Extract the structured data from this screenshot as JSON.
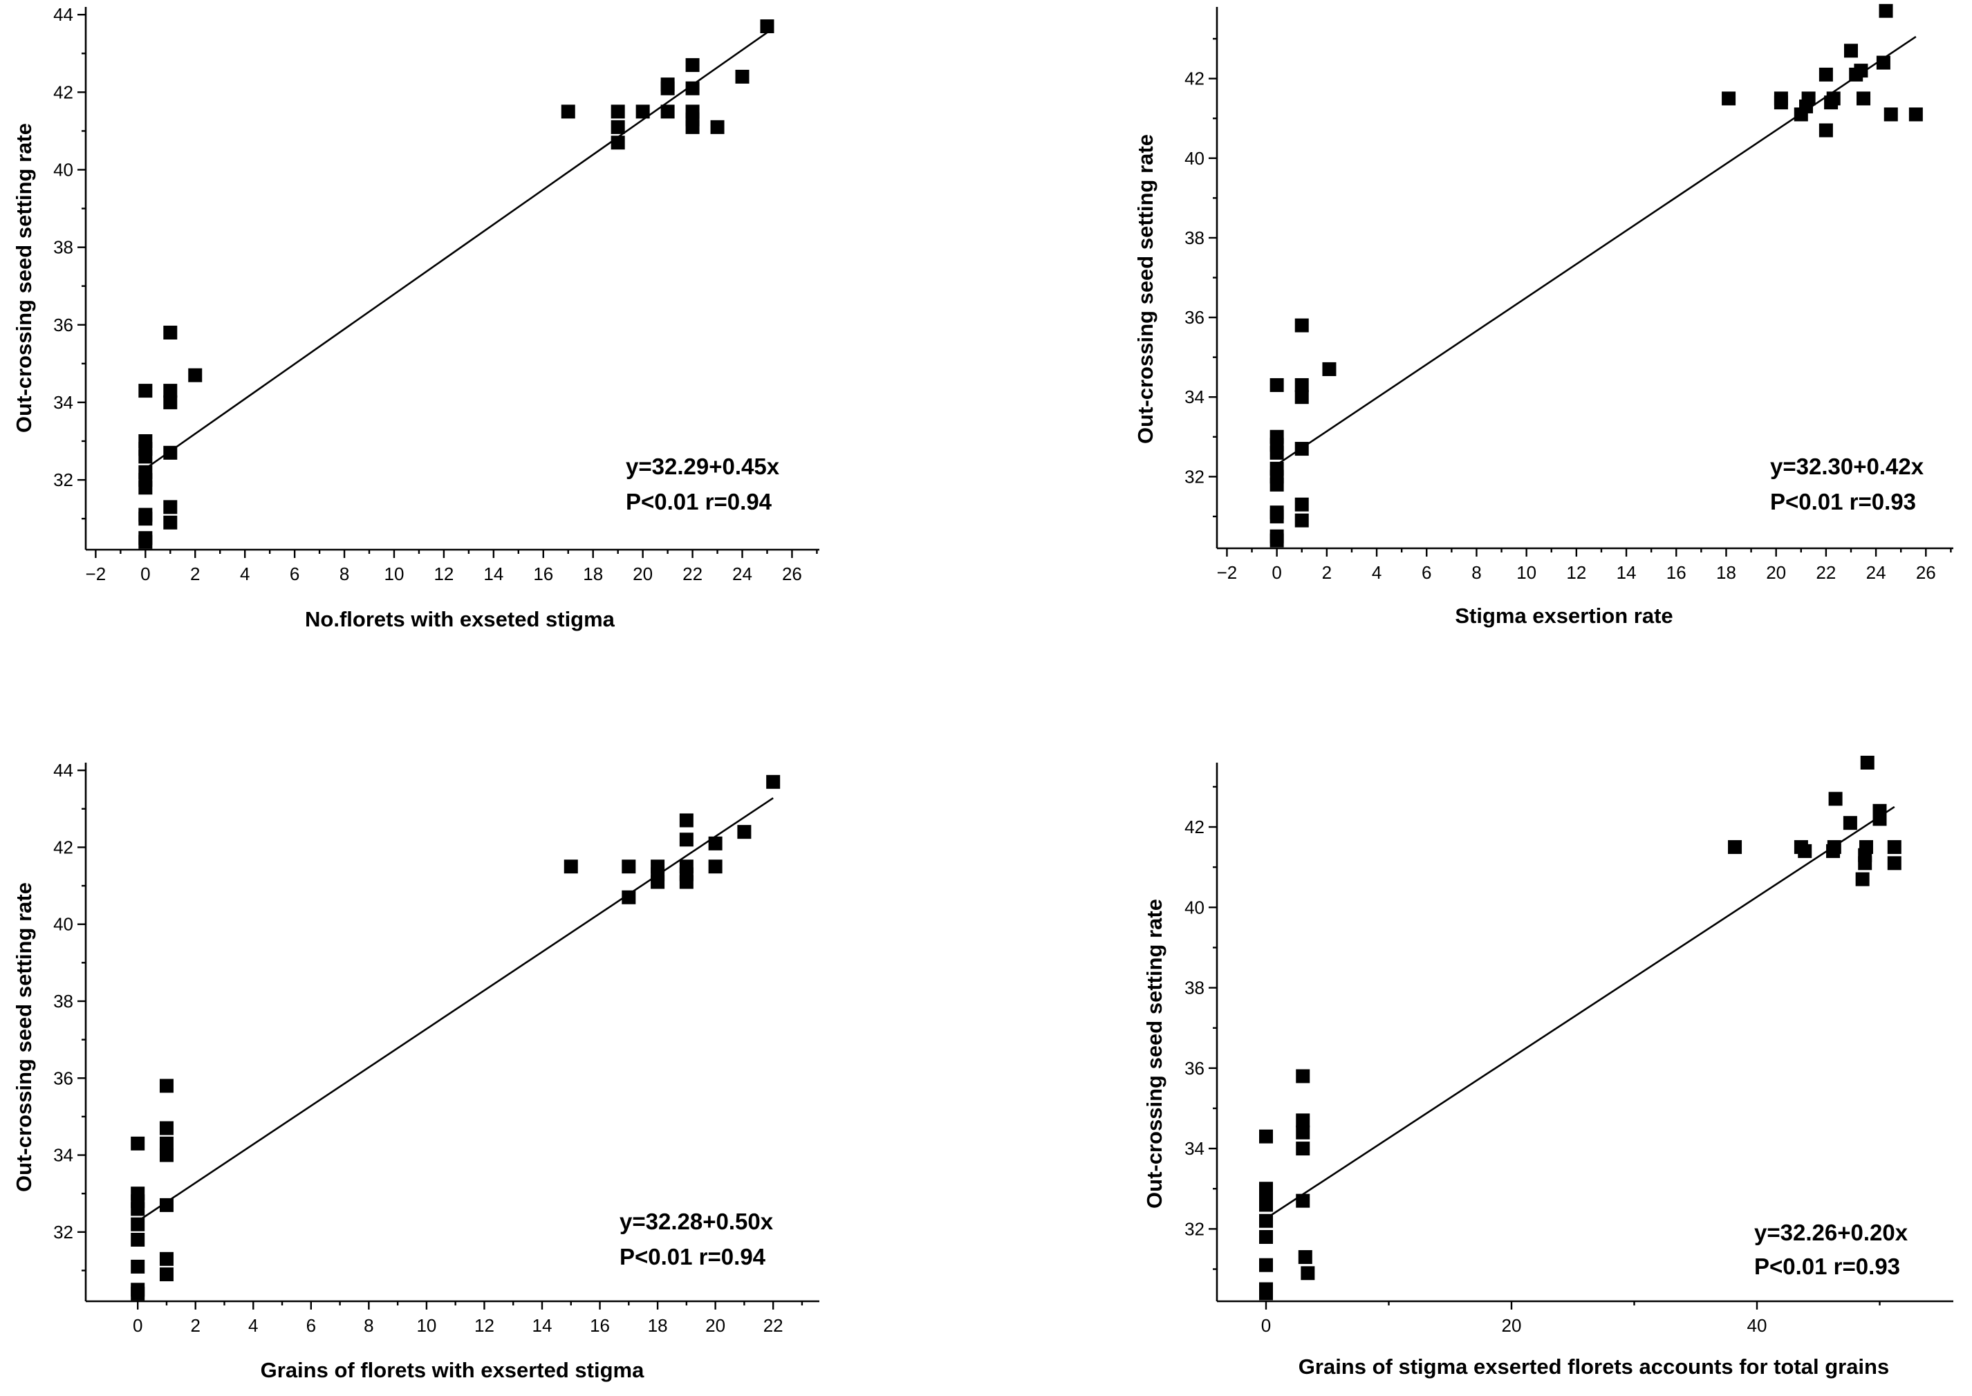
{
  "chart_data": [
    {
      "type": "scatter",
      "xlabel": "No.florets with exseted stigma",
      "ylabel": "Out-crossing seed setting rate",
      "xlim": [
        -2.4,
        27.1
      ],
      "ylim": [
        30.2,
        44.2
      ],
      "xticks": [
        -2,
        0,
        2,
        4,
        6,
        8,
        10,
        12,
        14,
        16,
        18,
        20,
        22,
        24,
        26
      ],
      "yticks": [
        32,
        34,
        36,
        38,
        40,
        42,
        44
      ],
      "points": [
        [
          0,
          30.4
        ],
        [
          0,
          30.5
        ],
        [
          0,
          31.0
        ],
        [
          0,
          31.1
        ],
        [
          0,
          31.8
        ],
        [
          0,
          32.0
        ],
        [
          0,
          32.2
        ],
        [
          0,
          32.6
        ],
        [
          0,
          32.8
        ],
        [
          0,
          33.0
        ],
        [
          0,
          34.3
        ],
        [
          1,
          30.9
        ],
        [
          1,
          31.3
        ],
        [
          1,
          32.7
        ],
        [
          1,
          34.0
        ],
        [
          1,
          34.3
        ],
        [
          1,
          35.8
        ],
        [
          2,
          34.7
        ],
        [
          17,
          41.5
        ],
        [
          19,
          40.7
        ],
        [
          19,
          41.1
        ],
        [
          19,
          41.5
        ],
        [
          20,
          41.5
        ],
        [
          21,
          41.5
        ],
        [
          21,
          42.1
        ],
        [
          21,
          42.2
        ],
        [
          22,
          41.1
        ],
        [
          22,
          41.3
        ],
        [
          22,
          41.5
        ],
        [
          22,
          42.1
        ],
        [
          22,
          42.7
        ],
        [
          23,
          41.1
        ],
        [
          24,
          42.4
        ],
        [
          25,
          43.7
        ]
      ],
      "fit": {
        "intercept": 32.29,
        "slope": 0.45
      },
      "annotations": [
        "y=32.29+0.45x",
        "P<0.01 r=0.94"
      ]
    },
    {
      "type": "scatter",
      "xlabel": "Stigma exsertion rate",
      "ylabel": "Out-crossing seed setting rate",
      "xlim": [
        -2.4,
        27.1
      ],
      "ylim": [
        30.2,
        43.8
      ],
      "xticks": [
        -2,
        0,
        2,
        4,
        6,
        8,
        10,
        12,
        14,
        16,
        18,
        20,
        22,
        24,
        26
      ],
      "yticks": [
        32,
        34,
        36,
        38,
        40,
        42
      ],
      "points": [
        [
          0,
          30.4
        ],
        [
          0,
          30.5
        ],
        [
          0,
          31.0
        ],
        [
          0,
          31.1
        ],
        [
          0,
          31.8
        ],
        [
          0,
          32.0
        ],
        [
          0,
          32.2
        ],
        [
          0,
          32.6
        ],
        [
          0,
          32.8
        ],
        [
          0,
          33.0
        ],
        [
          0,
          34.3
        ],
        [
          1,
          30.9
        ],
        [
          1,
          31.3
        ],
        [
          1,
          32.7
        ],
        [
          1,
          34.0
        ],
        [
          1,
          34.3
        ],
        [
          1,
          35.8
        ],
        [
          2.1,
          34.7
        ],
        [
          18.1,
          41.5
        ],
        [
          20.2,
          41.4
        ],
        [
          20.2,
          41.5
        ],
        [
          21.0,
          41.1
        ],
        [
          21.2,
          41.3
        ],
        [
          21.3,
          41.5
        ],
        [
          22.0,
          40.7
        ],
        [
          22.0,
          42.1
        ],
        [
          22.2,
          41.4
        ],
        [
          22.3,
          41.5
        ],
        [
          23.0,
          42.7
        ],
        [
          23.2,
          42.1
        ],
        [
          23.4,
          42.2
        ],
        [
          23.5,
          41.5
        ],
        [
          24.3,
          42.4
        ],
        [
          24.4,
          43.7
        ],
        [
          24.6,
          41.1
        ],
        [
          25.6,
          41.1
        ]
      ],
      "fit": {
        "intercept": 32.3,
        "slope": 0.42
      },
      "annotations": [
        "y=32.30+0.42x",
        "P<0.01 r=0.93"
      ]
    },
    {
      "type": "scatter",
      "xlabel": "Grains of florets with exserted stigma",
      "ylabel": "Out-crossing seed setting rate",
      "xlim": [
        -1.8,
        23.6
      ],
      "ylim": [
        30.2,
        44.2
      ],
      "xticks": [
        0,
        2,
        4,
        6,
        8,
        10,
        12,
        14,
        16,
        18,
        20,
        22
      ],
      "yticks": [
        32,
        34,
        36,
        38,
        40,
        42,
        44
      ],
      "points": [
        [
          0,
          30.4
        ],
        [
          0,
          30.5
        ],
        [
          0,
          31.1
        ],
        [
          0,
          31.8
        ],
        [
          0,
          32.2
        ],
        [
          0,
          32.6
        ],
        [
          0,
          32.8
        ],
        [
          0,
          33.0
        ],
        [
          0,
          34.3
        ],
        [
          1,
          30.9
        ],
        [
          1,
          31.3
        ],
        [
          1,
          32.7
        ],
        [
          1,
          34.0
        ],
        [
          1,
          34.3
        ],
        [
          1,
          34.7
        ],
        [
          1,
          35.8
        ],
        [
          15,
          41.5
        ],
        [
          17,
          40.7
        ],
        [
          17,
          41.5
        ],
        [
          18,
          41.1
        ],
        [
          18,
          41.3
        ],
        [
          18,
          41.5
        ],
        [
          19,
          41.1
        ],
        [
          19,
          41.3
        ],
        [
          19,
          41.5
        ],
        [
          19,
          42.2
        ],
        [
          19,
          42.7
        ],
        [
          20,
          41.5
        ],
        [
          20,
          42.1
        ],
        [
          21,
          42.4
        ],
        [
          22,
          43.7
        ]
      ],
      "fit": {
        "intercept": 32.28,
        "slope": 0.5
      },
      "annotations": [
        "y=32.28+0.50x",
        "P<0.01 r=0.94"
      ]
    },
    {
      "type": "scatter",
      "xlabel": "Grains of stigma exserted florets accounts for total grains",
      "ylabel": "Out-crossing seed setting rate",
      "xlim": [
        -4,
        56
      ],
      "ylim": [
        30.2,
        43.6
      ],
      "xticks": [
        0,
        20,
        40
      ],
      "yticks": [
        32,
        34,
        36,
        38,
        40,
        42
      ],
      "points": [
        [
          0,
          30.4
        ],
        [
          0,
          30.5
        ],
        [
          0,
          31.1
        ],
        [
          0,
          31.8
        ],
        [
          0,
          32.2
        ],
        [
          0,
          32.6
        ],
        [
          0,
          32.8
        ],
        [
          0,
          33.0
        ],
        [
          0,
          34.3
        ],
        [
          3,
          32.7
        ],
        [
          3,
          34.0
        ],
        [
          3,
          34.4
        ],
        [
          3,
          34.7
        ],
        [
          3,
          35.8
        ],
        [
          3.2,
          31.3
        ],
        [
          3.4,
          30.9
        ],
        [
          38.2,
          41.5
        ],
        [
          43.6,
          41.5
        ],
        [
          43.9,
          41.4
        ],
        [
          46.2,
          41.4
        ],
        [
          46.3,
          41.5
        ],
        [
          46.4,
          42.7
        ],
        [
          47.6,
          42.1
        ],
        [
          48.6,
          40.7
        ],
        [
          48.8,
          41.1
        ],
        [
          48.8,
          41.3
        ],
        [
          48.9,
          41.5
        ],
        [
          49.0,
          43.6
        ],
        [
          50.0,
          42.2
        ],
        [
          50.0,
          42.4
        ],
        [
          51.2,
          41.1
        ],
        [
          51.2,
          41.5
        ]
      ],
      "fit": {
        "intercept": 32.26,
        "slope": 0.2
      },
      "annotations": [
        "y=32.26+0.20x",
        "P<0.01 r=0.93"
      ]
    }
  ]
}
